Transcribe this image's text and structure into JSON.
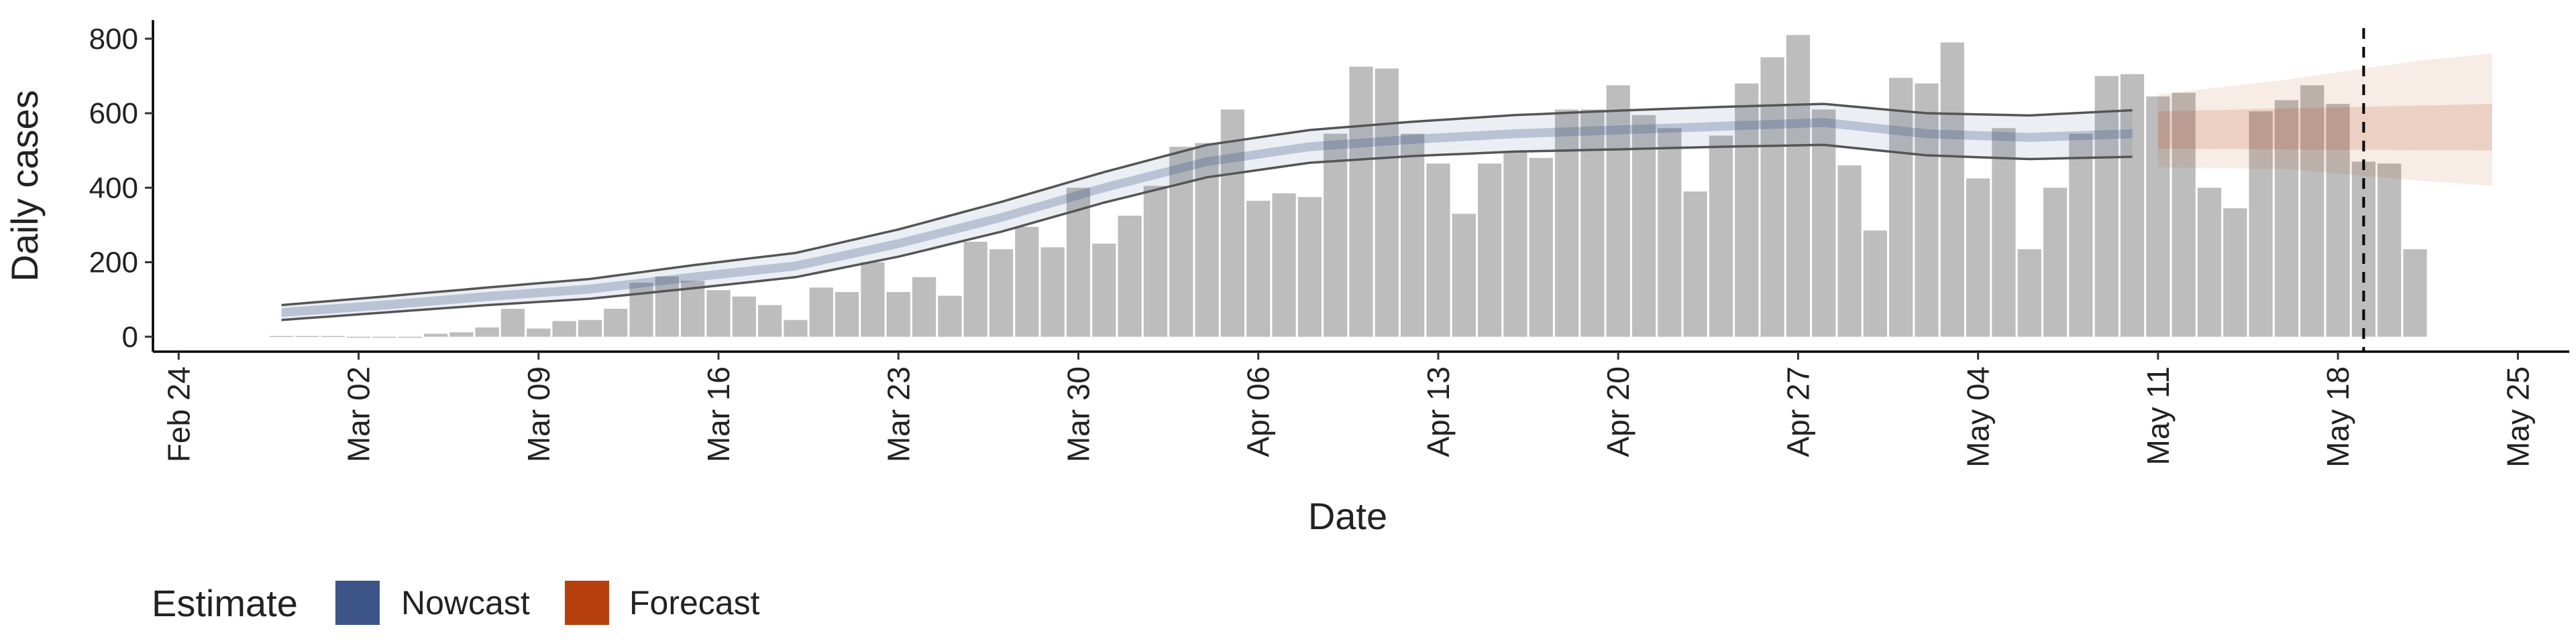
{
  "chart_data": {
    "type": "bar",
    "title": "",
    "xlabel": "Date",
    "ylabel": "Daily cases",
    "ylim": [
      -40,
      850
    ],
    "xlim": [
      "2020-02-23",
      "2020-05-27"
    ],
    "yticks": [
      0,
      200,
      400,
      600,
      800
    ],
    "xticks": [
      {
        "date": "2020-02-24",
        "label": "Feb 24"
      },
      {
        "date": "2020-03-02",
        "label": "Mar 02"
      },
      {
        "date": "2020-03-09",
        "label": "Mar 09"
      },
      {
        "date": "2020-03-16",
        "label": "Mar 16"
      },
      {
        "date": "2020-03-23",
        "label": "Mar 23"
      },
      {
        "date": "2020-03-30",
        "label": "Mar 30"
      },
      {
        "date": "2020-04-06",
        "label": "Apr 06"
      },
      {
        "date": "2020-04-13",
        "label": "Apr 13"
      },
      {
        "date": "2020-04-20",
        "label": "Apr 20"
      },
      {
        "date": "2020-04-27",
        "label": "Apr 27"
      },
      {
        "date": "2020-05-04",
        "label": "May 04"
      },
      {
        "date": "2020-05-11",
        "label": "May 11"
      },
      {
        "date": "2020-05-18",
        "label": "May 18"
      },
      {
        "date": "2020-05-25",
        "label": "May 25"
      }
    ],
    "bars": {
      "start_date": "2020-02-28",
      "color": "#bdbdbd",
      "values": [
        2,
        2,
        2,
        0,
        0,
        0,
        8,
        12,
        25,
        75,
        22,
        42,
        45,
        75,
        145,
        162,
        150,
        125,
        108,
        85,
        45,
        132,
        120,
        200,
        120,
        160,
        110,
        255,
        235,
        295,
        240,
        400,
        250,
        325,
        405,
        510,
        520,
        610,
        365,
        385,
        375,
        545,
        725,
        720,
        545,
        465,
        330,
        465,
        495,
        480,
        610,
        610,
        675,
        595,
        560,
        390,
        540,
        680,
        750,
        810,
        610,
        460,
        285,
        695,
        680,
        790,
        425,
        560,
        235,
        400,
        545,
        700,
        705,
        645,
        655,
        400,
        345,
        605,
        635,
        675,
        625,
        470,
        465,
        235
      ]
    },
    "nowcast": {
      "name": "Nowcast",
      "color": "#3c5488",
      "start_date": "2020-02-28",
      "end_date": "2020-05-10",
      "median": [
        [
          0,
          65
        ],
        [
          4,
          85
        ],
        [
          8,
          108
        ],
        [
          12,
          128
        ],
        [
          16,
          160
        ],
        [
          20,
          190
        ],
        [
          24,
          250
        ],
        [
          28,
          320
        ],
        [
          32,
          400
        ],
        [
          36,
          470
        ],
        [
          40,
          510
        ],
        [
          44,
          530
        ],
        [
          48,
          545
        ],
        [
          52,
          555
        ],
        [
          56,
          565
        ],
        [
          60,
          575
        ],
        [
          64,
          545
        ],
        [
          68,
          535
        ],
        [
          72,
          545
        ],
        [
          74,
          555
        ]
      ],
      "inner": [
        [
          0,
          55,
          75
        ],
        [
          4,
          75,
          97
        ],
        [
          8,
          96,
          120
        ],
        [
          12,
          115,
          142
        ],
        [
          16,
          145,
          177
        ],
        [
          20,
          175,
          208
        ],
        [
          24,
          233,
          268
        ],
        [
          28,
          300,
          340
        ],
        [
          32,
          380,
          420
        ],
        [
          36,
          450,
          492
        ],
        [
          40,
          490,
          532
        ],
        [
          44,
          508,
          552
        ],
        [
          48,
          522,
          568
        ],
        [
          52,
          530,
          580
        ],
        [
          56,
          540,
          590
        ],
        [
          60,
          548,
          600
        ],
        [
          64,
          520,
          570
        ],
        [
          68,
          510,
          562
        ],
        [
          72,
          518,
          572
        ],
        [
          74,
          528,
          582
        ]
      ],
      "outer": [
        [
          0,
          45,
          85
        ],
        [
          4,
          65,
          108
        ],
        [
          8,
          85,
          132
        ],
        [
          12,
          102,
          155
        ],
        [
          16,
          130,
          192
        ],
        [
          20,
          160,
          225
        ],
        [
          24,
          215,
          288
        ],
        [
          28,
          282,
          362
        ],
        [
          32,
          360,
          442
        ],
        [
          36,
          428,
          515
        ],
        [
          40,
          467,
          555
        ],
        [
          44,
          485,
          577
        ],
        [
          48,
          497,
          595
        ],
        [
          52,
          503,
          607
        ],
        [
          56,
          510,
          617
        ],
        [
          60,
          515,
          625
        ],
        [
          64,
          487,
          600
        ],
        [
          68,
          477,
          594
        ],
        [
          72,
          483,
          608
        ],
        [
          74,
          495,
          620
        ]
      ]
    },
    "forecast": {
      "name": "Forecast",
      "color": "#b5400e",
      "start_date": "2020-05-11",
      "end_date": "2020-05-24",
      "median": [
        [
          0,
          555
        ],
        [
          13,
          560
        ]
      ],
      "inner": [
        [
          0,
          505,
          605
        ],
        [
          13,
          500,
          625
        ]
      ],
      "outer": [
        [
          0,
          455,
          650
        ],
        [
          5,
          450,
          690
        ],
        [
          10,
          420,
          740
        ],
        [
          13,
          405,
          760
        ]
      ]
    },
    "vline": {
      "date": "2020-05-19",
      "style": "dashed"
    },
    "legend": {
      "title": "Estimate",
      "position": "bottom-left",
      "items": [
        "Nowcast",
        "Forecast"
      ]
    },
    "grid": false
  }
}
